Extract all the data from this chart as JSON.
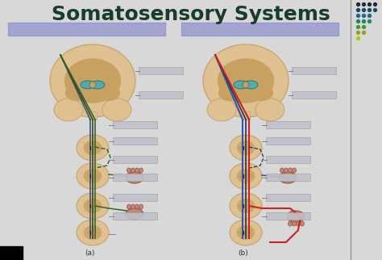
{
  "title": "Somatosensory Systems",
  "title_color": "#1a3d2b",
  "title_fontsize": 18,
  "bg_color": "#d8d8d8",
  "header_bar_color": "#8888cc",
  "brain_color": "#dfc090",
  "brain_dark": "#c9a870",
  "brain_inner": "#c8a060",
  "thal_color": "#55aaaa",
  "thal_outline": "#2a7a7a",
  "spinal_color": "#dfc090",
  "spinal_inner": "#c9a870",
  "label_bg": "#c0c0cc",
  "label_bg2": "#d0d0d8",
  "organ_color": "#c08878",
  "dot_colors_row": [
    "#1a2a35",
    "#1a3d50",
    "#1a5566",
    "#226655",
    "#337733",
    "#88aa22",
    "#aacc00"
  ],
  "line_a_colors": [
    "#334455",
    "#445533",
    "#336611"
  ],
  "line_b_red": "#cc2222",
  "line_b_blue": "#3355aa",
  "line_b_navy": "#223355",
  "footer_a": "(a)",
  "footer_b": "(b)",
  "divider_color": "#888888"
}
